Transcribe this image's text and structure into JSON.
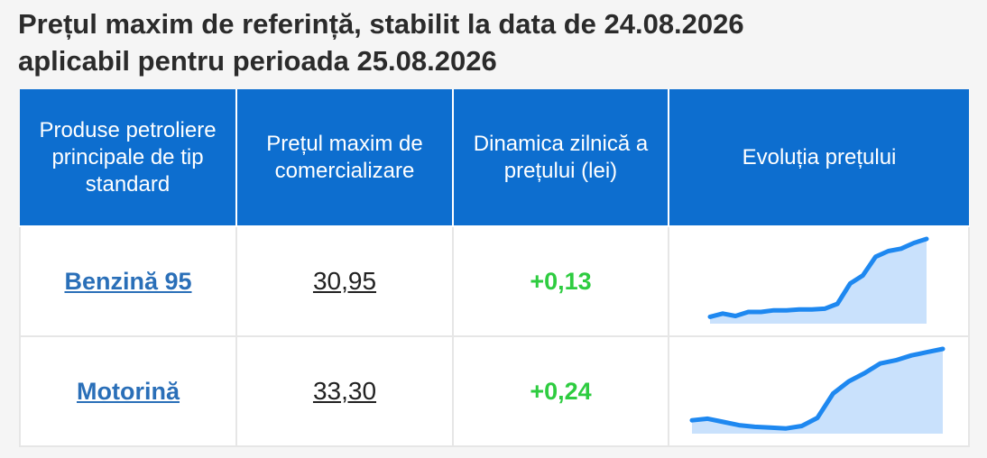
{
  "header": {
    "title_line1": "Prețul maxim de referință, stabilit la data de 24.08.2026",
    "title_line2": "aplicabil pentru perioada 25.08.2026"
  },
  "table": {
    "columns": [
      "Produse petroliere principale de tip standard",
      "Prețul maxim de comercializare",
      "Dinamica zilnică a prețului (lei)",
      "Evoluția prețului"
    ],
    "rows": [
      {
        "product": "Benzină 95",
        "price": "30,95",
        "delta": "+0,13",
        "trend": [
          0.04,
          0.08,
          0.05,
          0.1,
          0.1,
          0.12,
          0.12,
          0.13,
          0.13,
          0.14,
          0.2,
          0.45,
          0.55,
          0.78,
          0.85,
          0.88,
          0.95,
          1.0
        ]
      },
      {
        "product": "Motorină",
        "price": "33,30",
        "delta": "+0,24",
        "trend": [
          0.12,
          0.14,
          0.1,
          0.06,
          0.04,
          0.03,
          0.02,
          0.05,
          0.15,
          0.45,
          0.6,
          0.7,
          0.82,
          0.86,
          0.92,
          0.96,
          1.0
        ]
      }
    ]
  },
  "colors": {
    "header_bg": "#0d6ecf",
    "link": "#2a6fb8",
    "delta_up": "#2ecc40",
    "spark_line": "#1e88f0",
    "spark_fill": "#bfdcfb"
  }
}
